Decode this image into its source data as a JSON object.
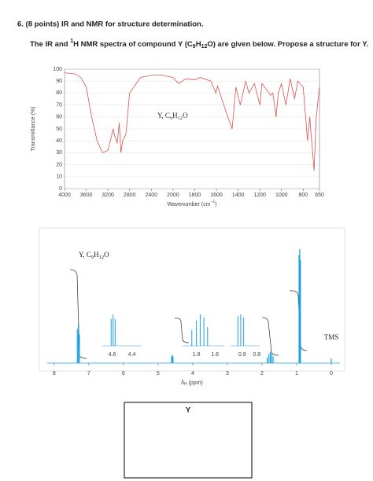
{
  "question": {
    "number_title": "6. (8 points) IR and NMR for structure determination.",
    "prompt_parts": [
      "The IR and ",
      "1",
      "H NMR spectra of compound Y (C",
      "9",
      "H",
      "12",
      "O) are given below. Propose a structure for Y."
    ]
  },
  "chart_data": [
    {
      "type": "line",
      "annotation_parts": [
        "Y, C",
        "9",
        "H",
        "12",
        "O"
      ],
      "ylabel": "Transmittance (%)",
      "xlabel_parts": [
        "Wavenumber (cm",
        "−1",
        ")"
      ],
      "x": [
        4000,
        3800,
        3700,
        3600,
        3500,
        3400,
        3300,
        3200,
        3100,
        3080,
        3030,
        2990,
        2960,
        2930,
        2870,
        2800,
        2600,
        2400,
        2200,
        2000,
        1950,
        1880,
        1800,
        1750,
        1650,
        1605,
        1590,
        1495,
        1455,
        1420,
        1380,
        1330,
        1300,
        1250,
        1200,
        1180,
        1100,
        1080,
        1050,
        1030,
        1000,
        960,
        920,
        880,
        850,
        800,
        760,
        740,
        700,
        680,
        650
      ],
      "values": [
        97,
        96,
        93,
        85,
        60,
        40,
        30,
        32,
        50,
        45,
        38,
        55,
        30,
        40,
        45,
        80,
        93,
        95,
        95,
        93,
        88,
        92,
        91,
        93,
        90,
        80,
        86,
        60,
        50,
        85,
        70,
        90,
        80,
        88,
        70,
        88,
        78,
        80,
        60,
        80,
        88,
        70,
        92,
        75,
        90,
        85,
        40,
        60,
        15,
        60,
        85
      ],
      "color": "#d9534f",
      "xlim": [
        4000,
        650
      ],
      "ylim": [
        0,
        100
      ],
      "xticks": [
        4000,
        3600,
        3200,
        2800,
        2400,
        2000,
        1800,
        1600,
        1400,
        1200,
        1000,
        800,
        650
      ],
      "yticks": [
        0,
        10,
        20,
        30,
        40,
        50,
        60,
        70,
        80,
        90,
        100
      ],
      "grid": true
    },
    {
      "type": "spectrum",
      "annotation_parts": [
        "Y, C",
        "9",
        "H",
        "12",
        "O"
      ],
      "xlabel_parts": [
        "δ",
        "H",
        " (ppm)"
      ],
      "x": [
        7.33,
        7.3,
        7.27,
        4.61,
        4.59,
        4.57,
        1.85,
        1.8,
        1.76,
        1.72,
        1.68,
        0.93,
        0.91,
        0.89,
        0.0
      ],
      "values": [
        30,
        35,
        25,
        6,
        7,
        6,
        5,
        8,
        10,
        9,
        6,
        95,
        100,
        90,
        4
      ],
      "color": "#1ba1e2",
      "xlim": [
        8.2,
        -0.25
      ],
      "ylim": [
        0,
        100
      ],
      "xticks": [
        8,
        7,
        6,
        5,
        4,
        3,
        2,
        1,
        0
      ],
      "peak_label": "TMS",
      "insets": [
        {
          "xlim": [
            4.7,
            4.3
          ],
          "xticks": [
            4.6,
            4.4
          ]
        },
        {
          "xlim": [
            1.95,
            1.5
          ],
          "xticks": [
            1.8,
            1.6
          ]
        },
        {
          "xlim": [
            0.98,
            0.78
          ],
          "xticks": [
            0.9,
            0.8
          ]
        }
      ]
    }
  ],
  "answer_box": {
    "label": "Y"
  }
}
